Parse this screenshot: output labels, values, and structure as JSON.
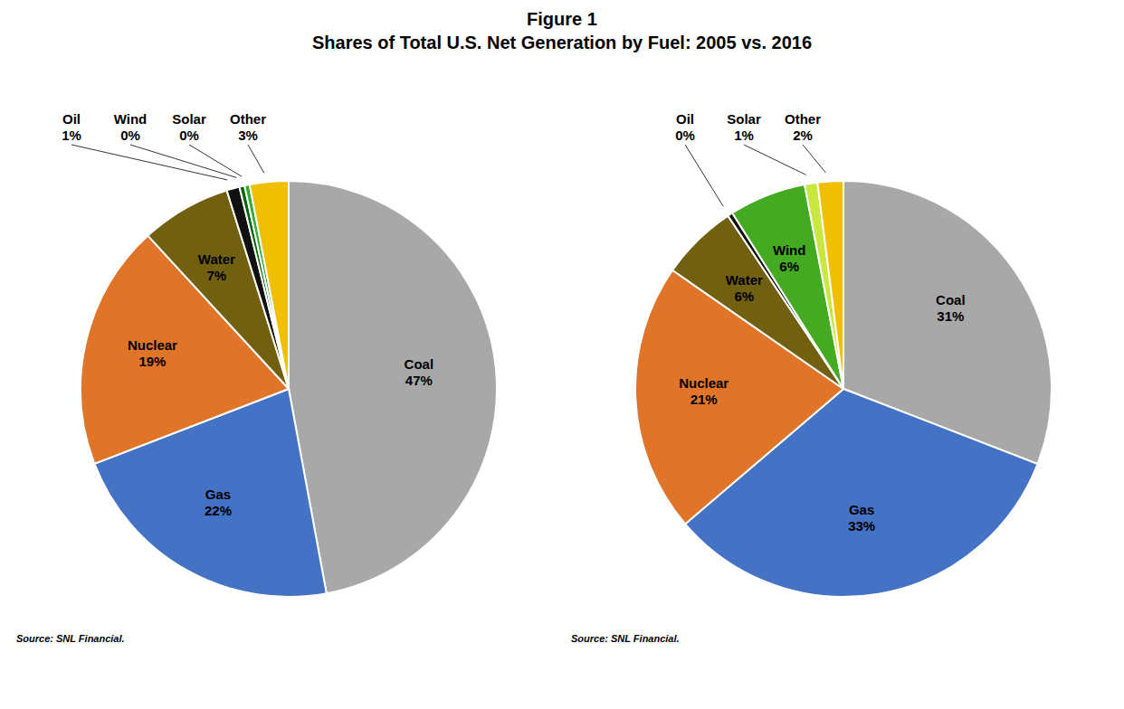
{
  "title": "Figure 1",
  "subtitle": "Shares of Total U.S. Net Generation by Fuel: 2005 vs. 2016",
  "chart_data": [
    {
      "type": "pie",
      "categories": [
        "Coal",
        "Gas",
        "Nuclear",
        "Water",
        "Oil",
        "Wind",
        "Solar",
        "Other"
      ],
      "values": [
        47,
        22,
        19,
        7,
        1,
        0.4,
        0.4,
        3
      ],
      "value_labels": [
        "47%",
        "22%",
        "19%",
        "7%",
        "1%",
        "0%",
        "0%",
        "3%"
      ],
      "colors": [
        "#a8a8a8",
        "#4472c4",
        "#e07428",
        "#706010",
        "#111111",
        "#006600",
        "#33aa33",
        "#f0c000"
      ],
      "data_labels": true,
      "annotations": [
        "Source: SNL Financial."
      ]
    },
    {
      "type": "pie",
      "categories": [
        "Coal",
        "Gas",
        "Nuclear",
        "Water",
        "Oil",
        "Wind",
        "Solar",
        "Other"
      ],
      "values": [
        31,
        33,
        21,
        6,
        0.4,
        6,
        1,
        2
      ],
      "value_labels": [
        "31%",
        "33%",
        "21%",
        "6%",
        "0%",
        "6%",
        "1%",
        "2%"
      ],
      "colors": [
        "#a8a8a8",
        "#4472c4",
        "#e07428",
        "#706010",
        "#111111",
        "#44aa22",
        "#c8e840",
        "#f0c000"
      ],
      "data_labels": true,
      "annotations": [
        "Source: SNL Financial."
      ]
    }
  ]
}
